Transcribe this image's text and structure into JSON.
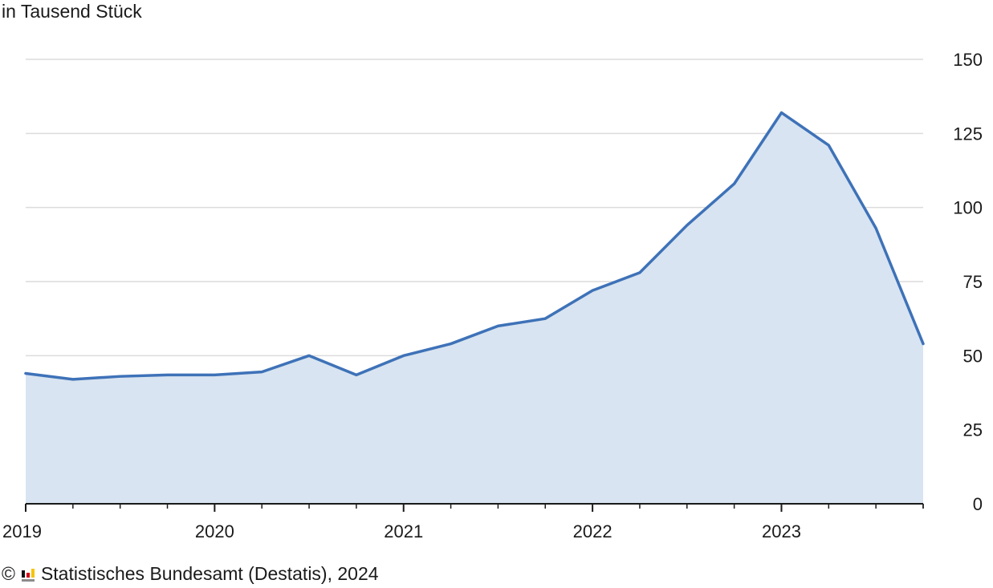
{
  "chart_data": {
    "type": "area",
    "ylabel": "in Tausend Stück",
    "x": [
      "2019 Q1",
      "2019 Q2",
      "2019 Q3",
      "2019 Q4",
      "2020 Q1",
      "2020 Q2",
      "2020 Q3",
      "2020 Q4",
      "2021 Q1",
      "2021 Q2",
      "2021 Q3",
      "2021 Q4",
      "2022 Q1",
      "2022 Q2",
      "2022 Q3",
      "2022 Q4",
      "2023 Q1",
      "2023 Q2",
      "2023 Q3",
      "2023 Q4"
    ],
    "values": [
      44,
      42,
      43,
      43.5,
      43.5,
      44.5,
      50,
      43.5,
      50,
      54,
      60,
      62.5,
      72,
      78,
      94,
      108,
      132,
      121,
      93,
      54
    ],
    "x_tick_labels": [
      "2019",
      "2020",
      "2021",
      "2022",
      "2023"
    ],
    "y_ticks": [
      0,
      25,
      50,
      75,
      100,
      125,
      150
    ],
    "ylim": [
      0,
      150
    ],
    "grid": true,
    "y_axis_side": "right",
    "colors": {
      "line": "#3e72b8",
      "fill": "#d8e4f1",
      "grid": "#dcdcdc",
      "axis": "#1a1a1a"
    }
  },
  "source": {
    "copyright": "©",
    "text": "Statistisches Bundesamt (Destatis), 2024",
    "logo_icon": "destatis-logo-icon"
  }
}
